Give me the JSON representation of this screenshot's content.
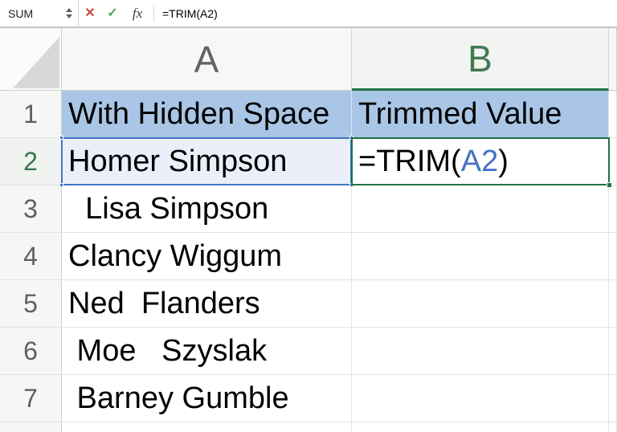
{
  "formula_bar": {
    "name_box_value": "SUM",
    "cancel_label": "✕",
    "confirm_label": "✓",
    "insert_function_label": "fx",
    "formula_value": "=TRIM(A2)"
  },
  "grid": {
    "column_headers": {
      "a": "A",
      "b": "B"
    },
    "active_cell": {
      "address": "B2",
      "prefix": "=TRIM(",
      "ref": "A2",
      "suffix": ")"
    },
    "rows": [
      {
        "num": "1",
        "a": "With Hidden Space",
        "b": "Trimmed Value"
      },
      {
        "num": "2",
        "a": "Homer Simpson",
        "b": ""
      },
      {
        "num": "3",
        "a": "  Lisa Simpson",
        "b": ""
      },
      {
        "num": "4",
        "a": "Clancy Wiggum",
        "b": ""
      },
      {
        "num": "5",
        "a": "Ned  Flanders",
        "b": ""
      },
      {
        "num": "6",
        "a": " Moe   Szyslak",
        "b": ""
      },
      {
        "num": "7",
        "a": " Barney Gumble",
        "b": ""
      }
    ]
  },
  "colors": {
    "accent_green": "#217346",
    "reference_blue": "#4472c4",
    "header_row_fill": "#a9c6e6",
    "referenced_cell_fill": "#eaeff9",
    "cancel_red": "#c84a3f",
    "confirm_green": "#55a15c"
  }
}
